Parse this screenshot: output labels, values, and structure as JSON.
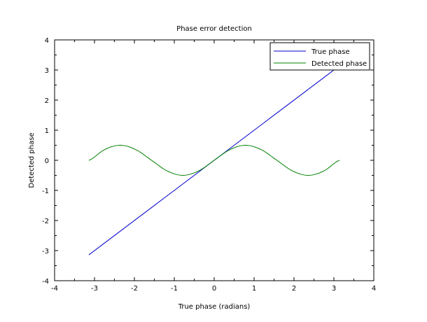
{
  "chart_data": {
    "type": "line",
    "title": "Phase error detection",
    "xlabel": "True phase (radians)",
    "ylabel": "Detected phase",
    "xlim": [
      -4,
      4
    ],
    "ylim": [
      -4,
      4
    ],
    "xticks": [
      -4,
      -3,
      -2,
      -1,
      0,
      1,
      2,
      3,
      4
    ],
    "yticks": [
      -4,
      -3,
      -2,
      -1,
      0,
      1,
      2,
      3,
      4
    ],
    "grid": false,
    "legend_position": "top-right",
    "x": [
      -3.1416,
      -2.7489,
      -2.3562,
      -1.9635,
      -1.5708,
      -1.1781,
      -0.7854,
      -0.3927,
      0,
      0.3927,
      0.7854,
      1.1781,
      1.5708,
      1.9635,
      2.3562,
      2.7489,
      3.1416
    ],
    "series": [
      {
        "name": "True phase",
        "color": "#0000cc",
        "values": [
          -3.1416,
          -2.7489,
          -2.3562,
          -1.9635,
          -1.5708,
          -1.1781,
          -0.7854,
          -0.3927,
          0,
          0.3927,
          0.7854,
          1.1781,
          1.5708,
          1.9635,
          2.3562,
          2.7489,
          3.1416
        ]
      },
      {
        "name": "Detected phase",
        "color": "#008000",
        "values": [
          0,
          0.354,
          0.5,
          0.354,
          0,
          -0.354,
          -0.5,
          -0.354,
          0,
          0.354,
          0.5,
          0.354,
          0,
          -0.354,
          -0.5,
          -0.354,
          0
        ]
      }
    ]
  }
}
